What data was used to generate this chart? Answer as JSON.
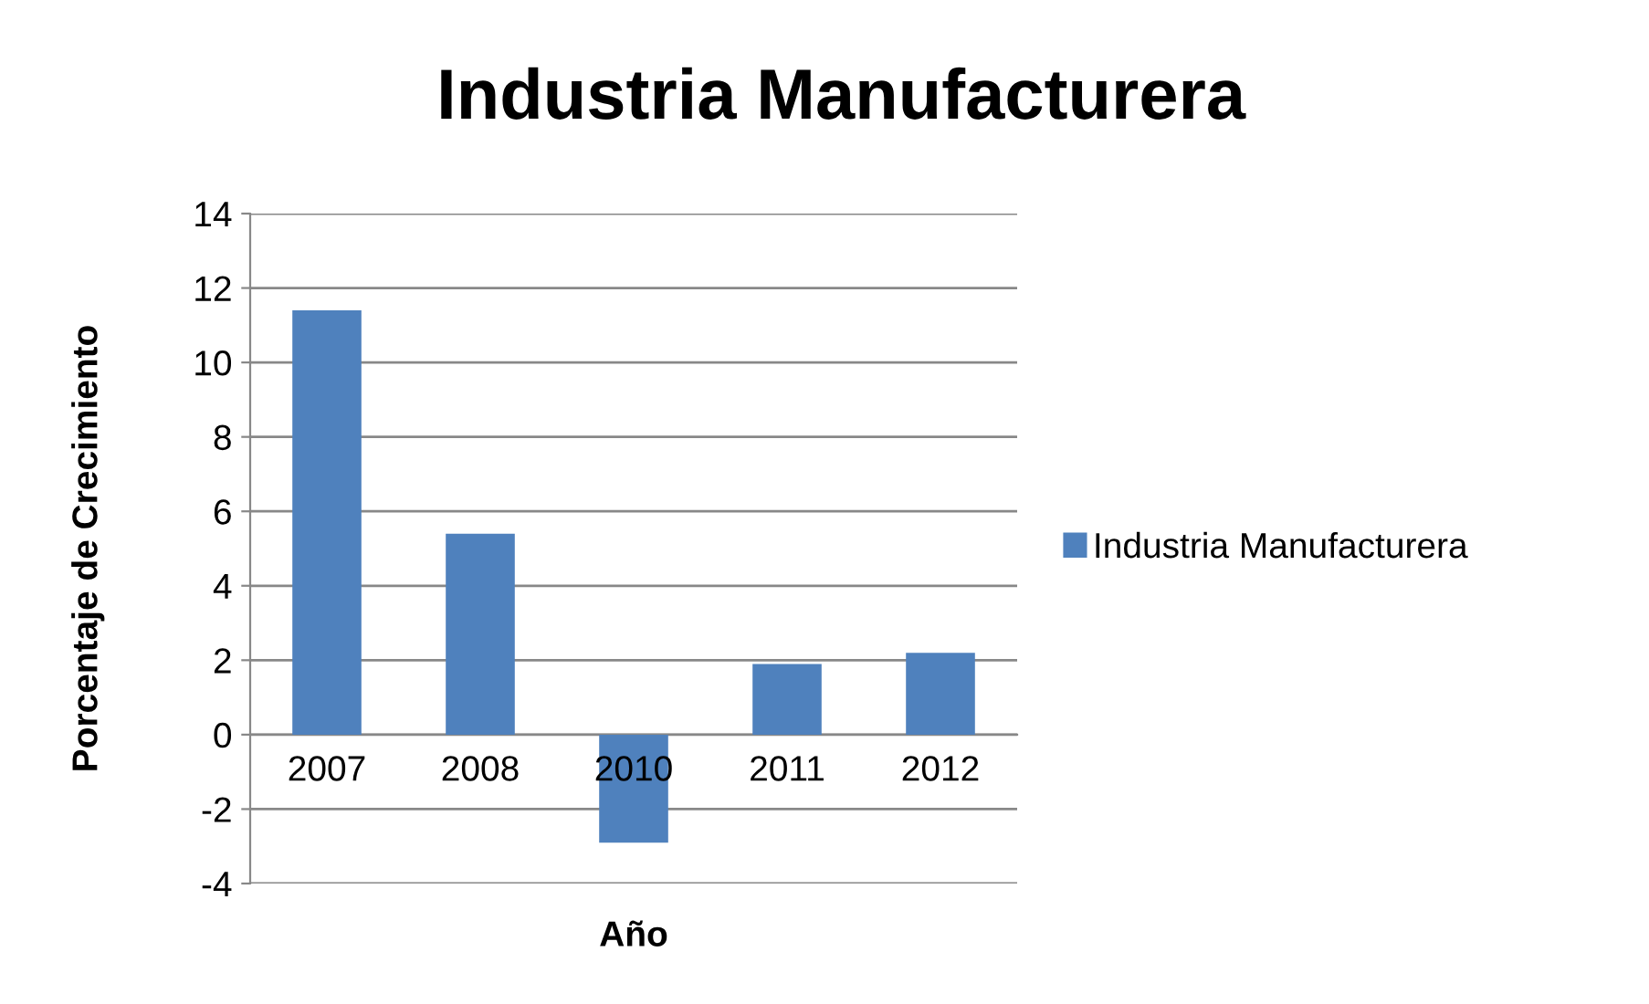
{
  "chart_data": {
    "type": "bar",
    "title": "Industria Manufacturera",
    "xlabel": "Año",
    "ylabel": "Porcentaje de Crecimiento",
    "categories": [
      "2007",
      "2008",
      "2010",
      "2011",
      "2012"
    ],
    "series": [
      {
        "name": "Industria Manufacturera",
        "color": "#4f81bd",
        "values": [
          11.4,
          5.4,
          -2.9,
          1.9,
          2.2
        ]
      }
    ],
    "ylim": [
      -4,
      14
    ],
    "yticks": [
      -4,
      -2,
      0,
      2,
      4,
      6,
      8,
      10,
      12,
      14
    ],
    "grid": "y",
    "legend": "right"
  }
}
